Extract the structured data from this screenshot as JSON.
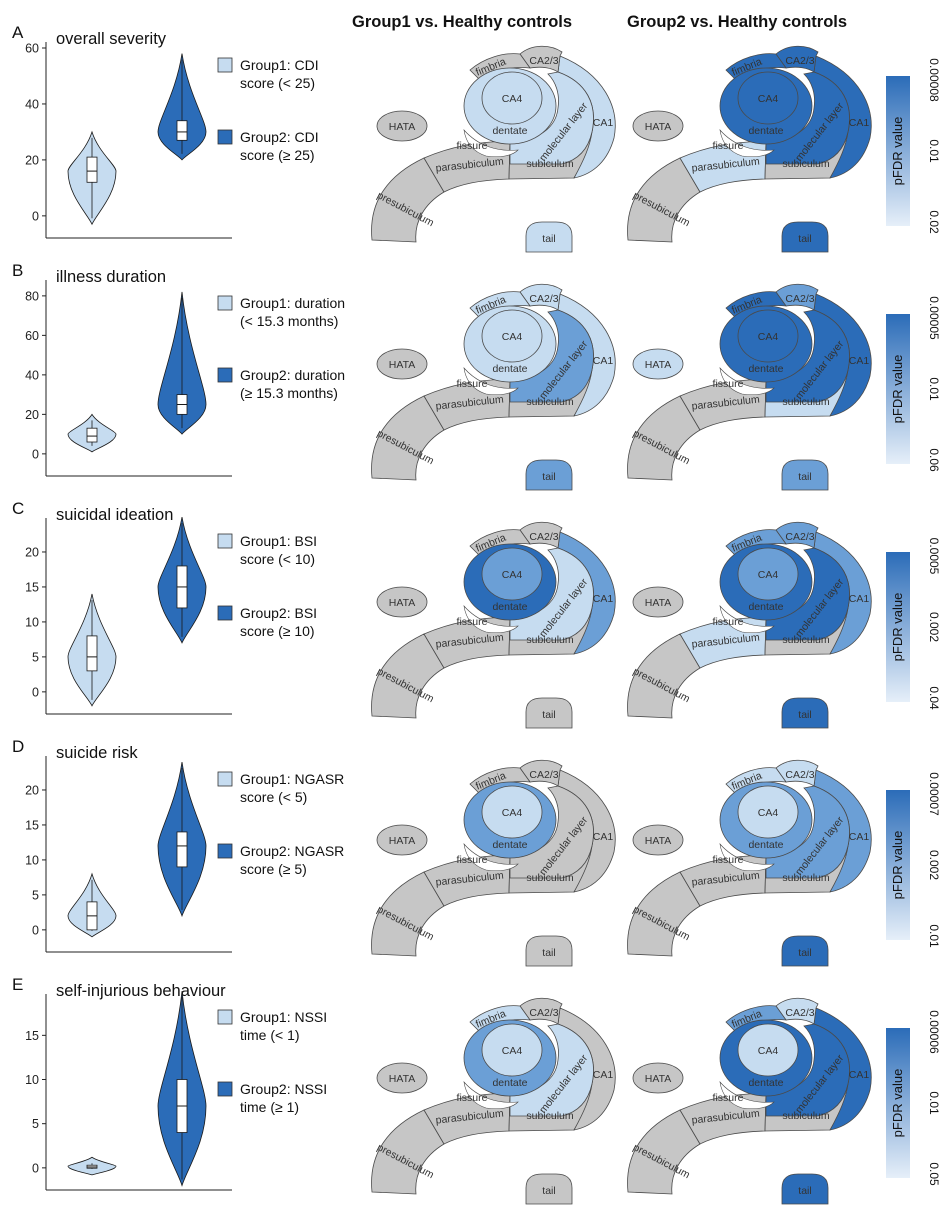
{
  "headers": {
    "col1": "Group1 vs. Healthy controls",
    "col2": "Group2 vs. Healthy controls"
  },
  "colorbar_label": "pFDR value",
  "colors": {
    "light": "#c6dcf0",
    "mid": "#6b9fd6",
    "dark": "#2b6cb8",
    "gray": "#c6c6c6",
    "outline": "#4a4a4a"
  },
  "region_labels": {
    "fimbria": "fimbria",
    "ca23": "CA2/3",
    "ca4": "CA4",
    "dentate": "dentate",
    "fissure": "fissure",
    "molecular": "molecular layer",
    "ca1": "CA1",
    "hata": "HATA",
    "parasubiculum": "parasubiculum",
    "subiculum": "subiculum",
    "presubiculum": "presubiculum",
    "tail": "tail"
  },
  "panels": [
    {
      "letter": "A",
      "title": "overall severity",
      "legend1": [
        "Group1:  CDI",
        "score (< 25)"
      ],
      "legend2": [
        "Group2:  CDI",
        "score (≥ 25)"
      ],
      "yticks": [
        "0",
        "20",
        "40",
        "60"
      ],
      "ymax": 60,
      "g1": {
        "center": 16,
        "min": -3,
        "max": 30,
        "q1": 12,
        "q3": 21,
        "median": 16
      },
      "g2": {
        "center": 30,
        "min": 20,
        "max": 58,
        "q1": 27,
        "q3": 34,
        "median": 30
      },
      "colorbar_ticks": [
        "0.00008",
        "0.01",
        "0.02"
      ],
      "map1": {
        "ca1": "light",
        "molecular": "light",
        "ca4": "light",
        "dentate": "light",
        "tail": "light"
      },
      "map2": {
        "ca1": "dark",
        "molecular": "dark",
        "ca23": "dark",
        "ca4": "dark",
        "dentate": "dark",
        "fimbria": "dark",
        "parasubiculum": "light",
        "tail": "dark"
      }
    },
    {
      "letter": "B",
      "title": "illness duration",
      "legend1": [
        "Group1: duration",
        "(< 15.3 months)"
      ],
      "legend2": [
        "Group2: duration",
        "(≥ 15.3 months)"
      ],
      "yticks": [
        "0",
        "20",
        "40",
        "60",
        "80"
      ],
      "ymax": 85,
      "g1": {
        "center": 10,
        "min": 1,
        "max": 20,
        "q1": 6,
        "q3": 13,
        "median": 9
      },
      "g2": {
        "center": 25,
        "min": 10,
        "max": 82,
        "q1": 20,
        "q3": 30,
        "median": 25
      },
      "colorbar_ticks": [
        "0.00005",
        "0.01",
        "0.06"
      ],
      "map1": {
        "ca1": "light",
        "molecular": "mid",
        "ca23": "light",
        "ca4": "light",
        "dentate": "light",
        "fimbria": "light",
        "tail": "mid"
      },
      "map2": {
        "ca1": "dark",
        "molecular": "dark",
        "ca23": "mid",
        "ca4": "dark",
        "dentate": "dark",
        "fimbria": "dark",
        "hata": "light",
        "subiculum": "light",
        "tail": "mid"
      }
    },
    {
      "letter": "C",
      "title": "suicidal ideation",
      "legend1": [
        "Group1:  BSI",
        "score (< 10)"
      ],
      "legend2": [
        "Group2:  BSI",
        "score (≥ 10)"
      ],
      "yticks": [
        "0",
        "5",
        "10",
        "15",
        "20"
      ],
      "ymax": 24,
      "g1": {
        "center": 5,
        "min": -2,
        "max": 14,
        "q1": 3,
        "q3": 8,
        "median": 5
      },
      "g2": {
        "center": 15,
        "min": 7,
        "max": 25,
        "q1": 12,
        "q3": 18,
        "median": 15
      },
      "colorbar_ticks": [
        "0.0005",
        "0.002",
        "0.04"
      ],
      "map1": {
        "ca1": "mid",
        "molecular": "light",
        "ca4": "mid",
        "dentate": "dark",
        "tail": "gray"
      },
      "map2": {
        "ca1": "mid",
        "molecular": "dark",
        "ca23": "mid",
        "ca4": "mid",
        "dentate": "dark",
        "fimbria": "mid",
        "parasubiculum": "light",
        "tail": "dark"
      }
    },
    {
      "letter": "D",
      "title": "suicide risk",
      "legend1": [
        "Group1:  NGASR",
        "score (< 5)"
      ],
      "legend2": [
        "Group2:  NGASR",
        "score (≥ 5)"
      ],
      "yticks": [
        "0",
        "5",
        "10",
        "15",
        "20"
      ],
      "ymax": 24,
      "g1": {
        "center": 2,
        "min": -1,
        "max": 8,
        "q1": 0,
        "q3": 4,
        "median": 2
      },
      "g2": {
        "center": 12,
        "min": 2,
        "max": 24,
        "q1": 9,
        "q3": 14,
        "median": 12
      },
      "colorbar_ticks": [
        "0.00007",
        "0.002",
        "0.01"
      ],
      "map1": {
        "ca4": "light",
        "dentate": "mid",
        "tail": "gray"
      },
      "map2": {
        "ca1": "mid",
        "molecular": "mid",
        "ca23": "light",
        "ca4": "light",
        "dentate": "mid",
        "fimbria": "light",
        "tail": "dark"
      }
    },
    {
      "letter": "E",
      "title": "self-injurious behaviour",
      "legend1": [
        "Group1:  NSSI",
        "time (< 1)"
      ],
      "legend2": [
        "Group2:  NSSI",
        "time (≥ 1)"
      ],
      "yticks": [
        "0",
        "5",
        "10",
        "15"
      ],
      "ymax": 19,
      "g1": {
        "center": 0.2,
        "min": -0.8,
        "max": 1.2,
        "q1": 0,
        "q3": 0.3,
        "median": 0.1
      },
      "g2": {
        "center": 7,
        "min": -2,
        "max": 20,
        "q1": 4,
        "q3": 10,
        "median": 7
      },
      "colorbar_ticks": [
        "0.00006",
        "0.01",
        "0.05"
      ],
      "map1": {
        "molecular": "light",
        "ca4": "light",
        "dentate": "mid",
        "fimbria": "light",
        "tail": "gray"
      },
      "map2": {
        "ca1": "dark",
        "molecular": "dark",
        "ca23": "light",
        "ca4": "light",
        "dentate": "dark",
        "fimbria": "mid",
        "tail": "dark"
      }
    }
  ]
}
